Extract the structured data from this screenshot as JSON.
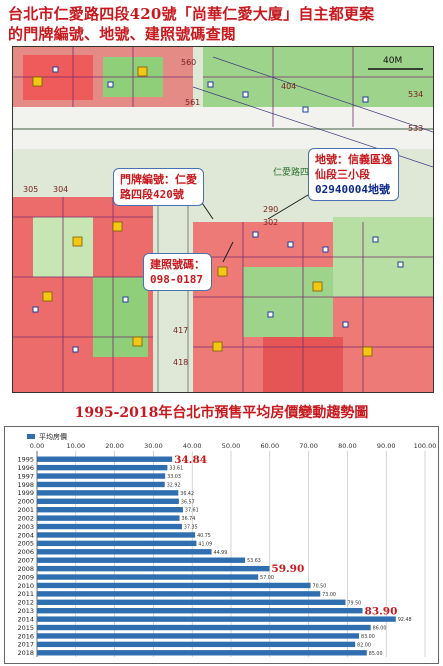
{
  "headline": {
    "line1": "台北市仁愛路四段420號「尚華仁愛大廈」自主都更案",
    "line2": "的門牌編號、地號、建照號碼查閱"
  },
  "map": {
    "callout_door": [
      "門牌編號：仁愛",
      "路四段420號"
    ],
    "callout_land": [
      "地號：信義區逸",
      "仙段三小段",
      "02940004地號"
    ],
    "callout_license": [
      "建照號碼：",
      "098-0187"
    ],
    "road_label": "仁愛路四段",
    "scale_label": "40M",
    "numbers": [
      "561",
      "560",
      "534",
      "533",
      "404",
      "290",
      "302",
      "417",
      "418",
      "305",
      "304"
    ]
  },
  "chart_title": "1995-2018年台北市預售平均房價變動趨勢圖",
  "chart_data": {
    "type": "bar",
    "orientation": "horizontal",
    "legend": "平均房價",
    "legend_position": "top-left",
    "xlim": [
      0,
      100
    ],
    "x_ticks": [
      "0.00",
      "10.00",
      "20.00",
      "30.00",
      "40.00",
      "50.00",
      "60.00",
      "70.00",
      "80.00",
      "90.00",
      "100.00"
    ],
    "categories": [
      "1995",
      "1996",
      "1997",
      "1998",
      "1999",
      "2000",
      "2001",
      "2002",
      "2003",
      "2004",
      "2005",
      "2006",
      "2007",
      "2008",
      "2009",
      "2010",
      "2011",
      "2012",
      "2013",
      "2014",
      "2015",
      "2016",
      "2017",
      "2018"
    ],
    "values": [
      34.84,
      33.61,
      33.03,
      32.92,
      36.42,
      36.57,
      37.61,
      36.74,
      37.35,
      40.75,
      41.09,
      44.99,
      53.63,
      59.9,
      57.0,
      70.5,
      73.0,
      79.5,
      83.9,
      92.48,
      86.0,
      83.0,
      82.0,
      85.0
    ],
    "value_labels": [
      "34.84",
      "33.61",
      "33.03",
      "32.92",
      "36.42",
      "36.57",
      "37.61",
      "36.74",
      "37.35",
      "40.75",
      "41.09",
      "44.99",
      "53.63",
      "59.90",
      "57.00",
      "70.50",
      "73.00",
      "79.50",
      "83.90",
      "92.48",
      "86.00",
      "83.00",
      "82.00",
      "85.00"
    ],
    "highlight_labels": [
      "34.84",
      "59.90",
      "83.90"
    ],
    "bar_color": "#2f6fb0",
    "highlight_color": "#c8191e",
    "grid": true
  },
  "colors": {
    "accent": "#c8191e",
    "navy": "#0d2a8a",
    "callout_border": "#4a6fb3"
  }
}
